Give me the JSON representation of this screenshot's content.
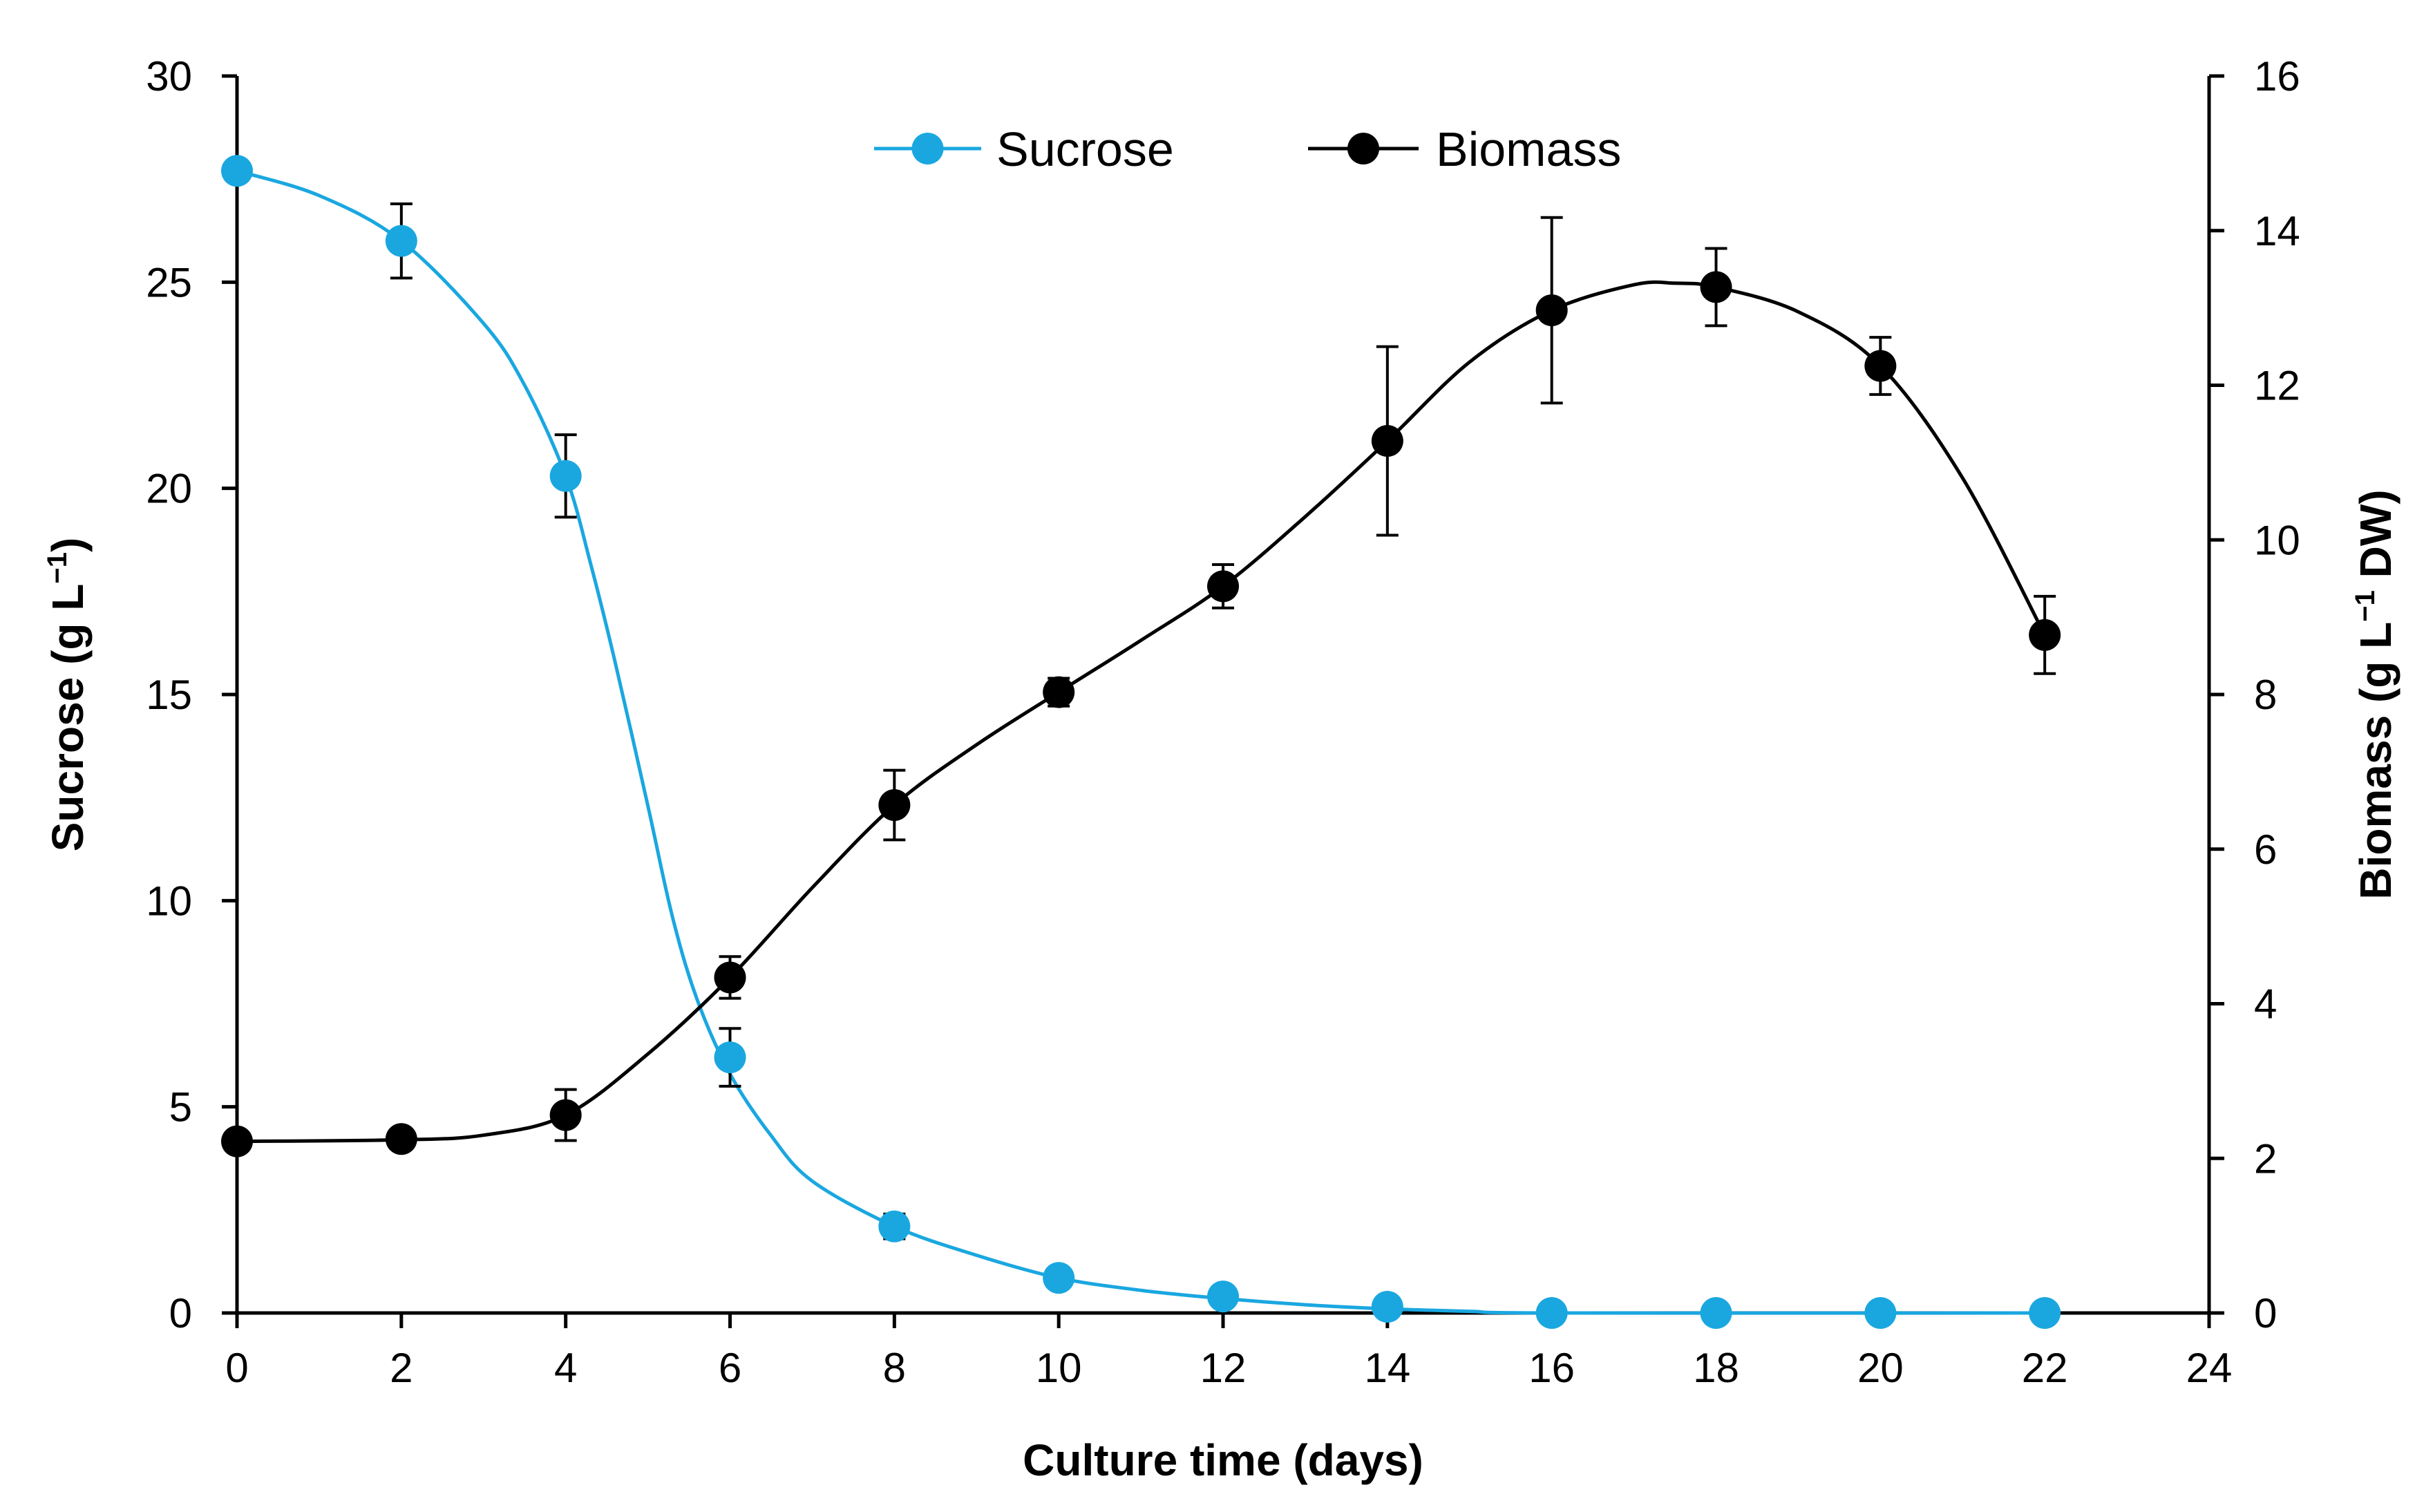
{
  "chart_data": {
    "type": "line",
    "title": "",
    "xlabel": "Culture time (days)",
    "ylabel_left": {
      "main": "Sucrose (g L",
      "sup": "−1",
      "tail": ")"
    },
    "ylabel_right": {
      "main": "Biomass (g L",
      "sup": "−1",
      "tail": " DW)"
    },
    "xlim": [
      0,
      24
    ],
    "ylim_left": [
      0,
      30
    ],
    "ylim_right": [
      0,
      16
    ],
    "xticks": [
      0,
      2,
      4,
      6,
      8,
      10,
      12,
      14,
      16,
      18,
      20,
      22,
      24
    ],
    "yticks_left": [
      0,
      5,
      10,
      15,
      20,
      25,
      30
    ],
    "yticks_right": [
      0,
      2,
      4,
      6,
      8,
      10,
      12,
      14,
      16
    ],
    "grid": false,
    "legend_position": "top-center",
    "series": [
      {
        "name": "Sucrose",
        "axis": "left",
        "color": "#1aa7e0",
        "x": [
          0,
          2,
          4,
          6,
          8,
          10,
          12,
          14,
          16,
          18,
          20,
          22
        ],
        "values": [
          27.7,
          26.0,
          20.3,
          6.2,
          2.1,
          0.85,
          0.4,
          0.15,
          0.0,
          0.0,
          0.0,
          0.0
        ],
        "errors": [
          0,
          0.9,
          1.0,
          0.7,
          0.3,
          0,
          0,
          0,
          0,
          0,
          0,
          0
        ],
        "curve_x": [
          0,
          1,
          2,
          3,
          3.5,
          4,
          4.3,
          4.6,
          5,
          5.3,
          5.6,
          6,
          6.5,
          7,
          8,
          9,
          10,
          11,
          12,
          13,
          14,
          15,
          16,
          22
        ],
        "curve_y": [
          27.7,
          27.1,
          26.0,
          24.0,
          22.5,
          20.3,
          18.2,
          15.8,
          12.3,
          9.6,
          7.6,
          5.8,
          4.3,
          3.2,
          2.1,
          1.4,
          0.85,
          0.55,
          0.35,
          0.2,
          0.1,
          0.04,
          0.0,
          0.0
        ]
      },
      {
        "name": "Biomass",
        "axis": "right",
        "color": "#000000",
        "x": [
          0,
          2,
          4,
          6,
          8,
          10,
          12,
          14,
          16,
          18,
          20,
          22
        ],
        "values": [
          2.22,
          2.25,
          2.56,
          4.34,
          6.57,
          8.03,
          9.4,
          11.28,
          12.97,
          13.27,
          12.25,
          8.77
        ],
        "errors": [
          0,
          0,
          0.33,
          0.27,
          0.45,
          0.18,
          0.28,
          1.22,
          1.2,
          0.5,
          0.37,
          0.5
        ],
        "curve_x": [
          0,
          2,
          3,
          4,
          5,
          6,
          7,
          8,
          9,
          10,
          11,
          12,
          13,
          14,
          15,
          16,
          17,
          17.5,
          18,
          19,
          20,
          21,
          22
        ],
        "curve_y": [
          2.22,
          2.24,
          2.3,
          2.56,
          3.35,
          4.34,
          5.5,
          6.57,
          7.35,
          8.03,
          8.7,
          9.4,
          10.3,
          11.28,
          12.3,
          12.97,
          13.3,
          13.32,
          13.27,
          12.95,
          12.25,
          10.8,
          8.77
        ]
      }
    ]
  }
}
